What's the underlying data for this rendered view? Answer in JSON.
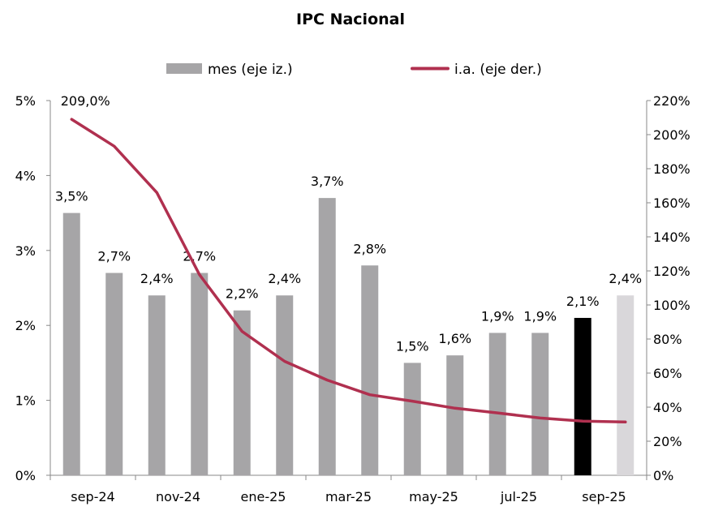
{
  "chart_data": {
    "type": "bar",
    "title": "IPC Nacional",
    "categories": [
      "sep-24",
      "oct-24",
      "nov-24",
      "dic-24",
      "ene-25",
      "feb-25",
      "mar-25",
      "abr-25",
      "may-25",
      "jun-25",
      "jul-25",
      "ago-25",
      "sep-25",
      "oct-25"
    ],
    "x_tick_labels": [
      "sep-24",
      "nov-24",
      "ene-25",
      "mar-25",
      "may-25",
      "jul-25",
      "sep-25"
    ],
    "series": [
      {
        "name": "mes (eje iz.)",
        "type": "bar",
        "axis": "left",
        "values": [
          3.5,
          2.7,
          2.4,
          2.7,
          2.2,
          2.4,
          3.7,
          2.8,
          1.5,
          1.6,
          1.9,
          1.9,
          2.1,
          2.4
        ],
        "data_labels": [
          "3,5%",
          "2,7%",
          "2,4%",
          "2,7%",
          "2,2%",
          "2,4%",
          "3,7%",
          "2,8%",
          "1,5%",
          "1,6%",
          "1,9%",
          "1,9%",
          "2,1%",
          "2,4%"
        ],
        "colors": [
          "#a6a5a7",
          "#a6a5a7",
          "#a6a5a7",
          "#a6a5a7",
          "#a6a5a7",
          "#a6a5a7",
          "#a6a5a7",
          "#a6a5a7",
          "#a6a5a7",
          "#a6a5a7",
          "#a6a5a7",
          "#a6a5a7",
          "#000000",
          "#d9d7da"
        ],
        "legend_color": "#a6a5a7"
      },
      {
        "name": "i.a. (eje der.)",
        "type": "line",
        "axis": "right",
        "color": "#b0304f",
        "values": [
          209.0,
          193.2,
          166.0,
          117.8,
          84.5,
          66.9,
          55.9,
          47.3,
          43.5,
          39.4,
          36.6,
          33.6,
          31.8,
          31.3
        ],
        "data_labels": [
          "209,0%"
        ]
      }
    ],
    "y_left": {
      "ylim": [
        0,
        5
      ],
      "tick_labels": [
        "0%",
        "1%",
        "2%",
        "3%",
        "4%",
        "5%"
      ]
    },
    "y_right": {
      "ylim": [
        0,
        220
      ],
      "tick_labels": [
        "0%",
        "20%",
        "40%",
        "60%",
        "80%",
        "100%",
        "120%",
        "140%",
        "160%",
        "180%",
        "200%",
        "220%"
      ]
    },
    "legend_position": "top",
    "grid": false
  }
}
